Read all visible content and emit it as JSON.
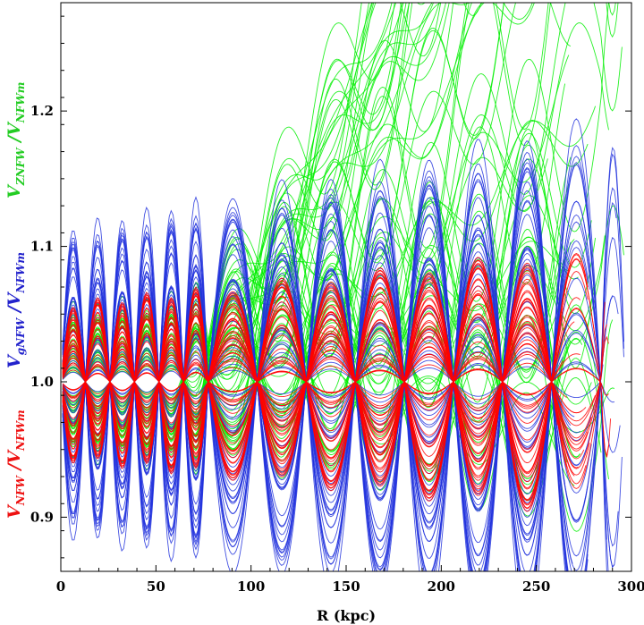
{
  "chart_data": {
    "type": "line",
    "title": "",
    "xlabel": "R  (kpc)",
    "xlim": [
      0,
      300
    ],
    "ylim": [
      0.86,
      1.28
    ],
    "x_ticks": [
      0,
      50,
      100,
      150,
      200,
      250,
      300
    ],
    "x_tick_labels": [
      "0",
      "50",
      "100",
      "150",
      "200",
      "250",
      "300"
    ],
    "y_ticks": [
      0.9,
      1.0,
      1.1,
      1.2
    ],
    "y_tick_labels": [
      "0.9",
      "1.0",
      "1.1",
      "1.2"
    ],
    "ylabel_parts": [
      {
        "name": "red",
        "color": "#ee1111",
        "num_base": "V",
        "num_sub": "NFW",
        "den_base": "V",
        "den_sub": "NFWm"
      },
      {
        "name": "blue",
        "color": "#2222cc",
        "num_base": "V",
        "num_sub": "gNFW",
        "den_base": "V",
        "den_sub": "NFWm"
      },
      {
        "name": "green",
        "color": "#22cc22",
        "num_base": "V",
        "num_sub": "ZNFW",
        "den_base": "V",
        "den_sub": "NFWm"
      }
    ],
    "series": [
      {
        "name": "V_ZNFW / V_NFWm",
        "color": "#00ee00",
        "r_nodes": [
          0,
          12.9,
          25.8,
          38.7,
          51.6,
          64.5,
          77.4,
          103.2,
          129,
          154.8,
          180.6,
          206.4,
          232.2,
          258,
          283.8,
          296.7
        ],
        "amplitude_range": [
          0.005,
          0.06
        ],
        "curve_count": 70,
        "trend_range": [
          -0.03,
          0.45
        ],
        "trend_onset_r": 58
      },
      {
        "name": "V_gNFW / V_NFWm",
        "color": "#2233dd",
        "r_nodes": [
          0,
          12.9,
          25.8,
          38.7,
          51.6,
          64.5,
          77.4,
          103.2,
          129,
          154.8,
          180.6,
          206.4,
          232.2,
          258,
          283.8,
          296.7
        ],
        "amplitude_range": [
          0.005,
          0.12
        ],
        "curve_count": 60
      },
      {
        "name": "V_NFW / V_NFWm",
        "color": "#ff0000",
        "r_nodes": [
          0,
          12.9,
          25.8,
          38.7,
          51.6,
          64.5,
          77.4,
          103.2,
          129,
          154.8,
          180.6,
          206.4,
          232.2,
          258,
          283.8,
          290
        ],
        "amplitude_range": [
          0.005,
          0.06
        ],
        "curve_count": 60
      }
    ]
  }
}
